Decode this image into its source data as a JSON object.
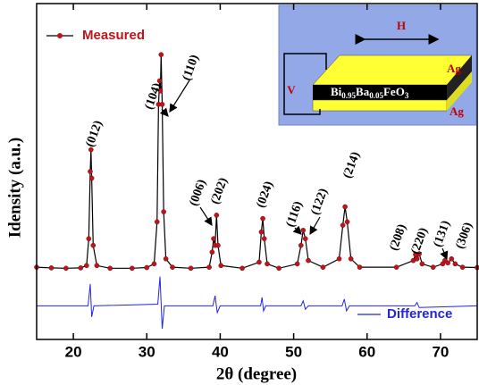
{
  "chart_data": {
    "type": "line",
    "xlabel": "2θ (degree)",
    "ylabel": "Idensity (a.u.)",
    "xlim": [
      15,
      75
    ],
    "xticks": [
      20,
      30,
      40,
      50,
      60,
      70
    ],
    "ylim": [
      0,
      100
    ],
    "legend": "upper left",
    "series": [
      {
        "name": "Measured",
        "color": "#c0141c",
        "x": [
          15,
          17,
          19,
          21,
          21.8,
          22.1,
          22.3,
          22.4,
          22.5,
          22.7,
          23.2,
          25,
          28,
          30,
          31,
          31.4,
          31.6,
          31.75,
          31.85,
          31.95,
          32.1,
          32.3,
          32.6,
          33.5,
          36,
          38.5,
          38.9,
          39.1,
          39.3,
          39.5,
          39.7,
          40.1,
          43,
          45.3,
          45.6,
          45.8,
          46,
          46.4,
          48,
          50.5,
          51,
          51.3,
          51.6,
          52,
          54,
          56.2,
          56.7,
          57,
          57.3,
          57.8,
          59,
          64,
          66.3,
          66.6,
          66.8,
          67.1,
          67.5,
          69,
          70.3,
          70.6,
          71,
          71.5,
          72,
          73,
          75
        ],
        "values": [
          21.5,
          21.3,
          21.2,
          21.3,
          22,
          30,
          50,
          56.5,
          48,
          28,
          22,
          21.2,
          21.2,
          21.4,
          22.5,
          35,
          70,
          77,
          74,
          84.8,
          70,
          38,
          24,
          21.5,
          21.2,
          21.5,
          26,
          30,
          28,
          37,
          28,
          22,
          21.2,
          23,
          32,
          36,
          30,
          22.5,
          21.2,
          22.5,
          28,
          32.5,
          30,
          23.5,
          21.5,
          24,
          34,
          39.5,
          35,
          24,
          21.5,
          21.5,
          23.5,
          25.3,
          24,
          25.5,
          22.5,
          21.5,
          22.5,
          23.5,
          22.8,
          24,
          22.5,
          21.5,
          21.4
        ]
      },
      {
        "name": "Difference",
        "color": "#2424e0",
        "x": [
          15,
          22,
          22.3,
          22.5,
          22.8,
          31.5,
          31.8,
          32.1,
          32.4,
          39,
          39.3,
          39.6,
          40,
          45.5,
          45.7,
          45.9,
          46.2,
          51,
          51.3,
          51.6,
          52,
          56.6,
          56.9,
          57.2,
          57.6,
          66.5,
          66.8,
          67.1,
          75
        ],
        "values": [
          10,
          10,
          16.5,
          6.7,
          10,
          10.5,
          18.7,
          3.2,
          10,
          10,
          13,
          8,
          10,
          10,
          12.5,
          8.5,
          10,
          10,
          11.5,
          9,
          10,
          10,
          12,
          8.5,
          10,
          10,
          11,
          9.5,
          10
        ]
      }
    ],
    "annotations": [
      "(012)",
      "(104)",
      "(110)",
      "(006)",
      "(202)",
      "(024)",
      "(116)",
      "(122)",
      "(214)",
      "(208)",
      "(220)",
      "(131)",
      "(306)"
    ]
  },
  "inset": {
    "field": "H",
    "voltage": "V",
    "electrode_top": "Ag",
    "electrode_bottom": "Ag",
    "sample": [
      "Bi",
      "0.95",
      "Ba",
      "0.05",
      "Fe",
      "O",
      "3"
    ]
  }
}
